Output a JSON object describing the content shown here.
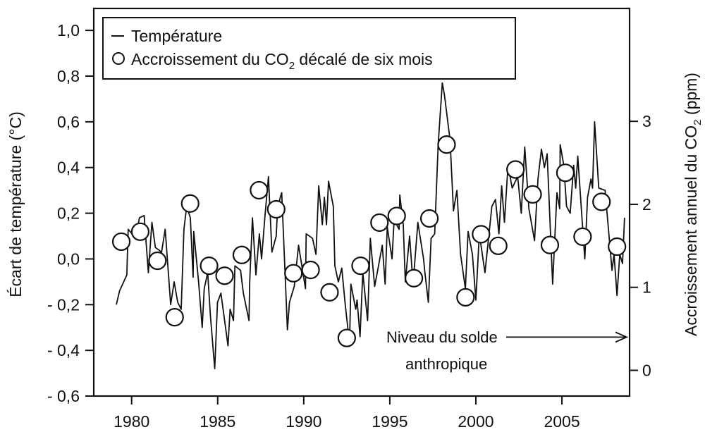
{
  "chart_data": {
    "type": "line",
    "title": "",
    "xlabel": "",
    "ylabel_left": "Écart de température (°C)",
    "ylabel_right": {
      "text": "Accroissement annuel du CO",
      "sub": "2",
      "suffix": " (ppm)"
    },
    "xlim": [
      1977.8,
      2008.93
    ],
    "ylim_left": [
      -0.6,
      1.096
    ],
    "ylim_right": [
      -0.31,
      4.36
    ],
    "grid": false,
    "legend_position": "top-left",
    "x_ticks": [
      1980,
      1985,
      1990,
      1995,
      2000,
      2005
    ],
    "x_tick_labels": [
      "1980",
      "1985",
      "1990",
      "1995",
      "2000",
      "2005"
    ],
    "y_left_ticks": [
      1.0,
      0.8,
      0.6,
      0.4,
      0.2,
      0.0,
      -0.2,
      -0.4,
      -0.6
    ],
    "y_left_tick_labels": [
      "1,0",
      "0,8",
      "0,6",
      "0,4",
      "0,2",
      "0,0",
      "- 0,2",
      "- 0,4",
      "- 0,6"
    ],
    "y_right_ticks": [
      3,
      2,
      1,
      0
    ],
    "y_right_tick_labels": [
      "3",
      "2",
      "1",
      "0"
    ],
    "legend": {
      "temperature": "Température",
      "co2": {
        "text": "Accroissement du CO",
        "sub": "2",
        "suffix": " décalé de six mois"
      }
    },
    "annotation": {
      "line1": "Niveau du solde",
      "line2": "anthropique",
      "level_ppm": 0.4
    },
    "series": [
      {
        "name": "Température",
        "axis": "left",
        "style": "line",
        "x": [
          1979.11,
          1979.3,
          1979.72,
          1979.8,
          1980.24,
          1980.45,
          1980.73,
          1980.97,
          1981.18,
          1981.38,
          1981.74,
          1981.95,
          1982.27,
          1982.47,
          1982.68,
          1982.88,
          1983.04,
          1983.2,
          1983.41,
          1983.57,
          1983.61,
          1983.89,
          1984.1,
          1984.22,
          1984.42,
          1984.58,
          1984.83,
          1984.99,
          1985.19,
          1985.6,
          1985.72,
          1985.92,
          1986.0,
          1986.33,
          1986.49,
          1986.82,
          1986.86,
          1987.02,
          1987.22,
          1987.42,
          1987.55,
          1987.75,
          1987.95,
          1988.15,
          1988.4,
          1988.48,
          1988.64,
          1988.72,
          1989.05,
          1989.17,
          1989.45,
          1989.7,
          1990.1,
          1990.14,
          1990.51,
          1990.71,
          1990.87,
          1991.08,
          1991.2,
          1991.32,
          1991.44,
          1991.72,
          1991.81,
          1992.01,
          1992.21,
          1992.41,
          1992.66,
          1992.74,
          1993.02,
          1993.1,
          1993.27,
          1993.43,
          1993.71,
          1993.87,
          1994.12,
          1994.32,
          1994.56,
          1994.73,
          1994.85,
          1995.13,
          1995.25,
          1995.54,
          1995.58,
          1995.78,
          1995.9,
          1996.15,
          1996.35,
          1996.63,
          1996.96,
          1997.04,
          1997.24,
          1997.4,
          1997.61,
          1997.81,
          1998.05,
          1998.17,
          1998.5,
          1998.7,
          1998.9,
          1999.11,
          1999.39,
          1999.55,
          1999.8,
          2000.0,
          2000.2,
          2000.53,
          2000.93,
          2001.14,
          2001.34,
          2001.5,
          2001.66,
          2001.87,
          2002.11,
          2002.43,
          2002.64,
          2002.84,
          2003.08,
          2003.41,
          2003.61,
          2003.81,
          2003.98,
          2004.14,
          2004.46,
          2004.71,
          2004.87,
          2004.9,
          2005.11,
          2005.27,
          2005.48,
          2005.68,
          2005.8,
          2005.92,
          2006.21,
          2006.33,
          2006.49,
          2006.69,
          2006.78,
          2006.9,
          2007.14,
          2007.51,
          2007.91,
          2008.03,
          2008.2,
          2008.36,
          2008.52,
          2008.64
        ],
        "y": [
          -0.2,
          -0.14,
          -0.07,
          0.13,
          0.09,
          0.18,
          0.19,
          -0.06,
          0.16,
          0.05,
          0.03,
          0.13,
          -0.2,
          -0.1,
          -0.19,
          -0.22,
          0.13,
          0.23,
          0.18,
          -0.08,
          0.12,
          -0.1,
          -0.3,
          -0.13,
          -0.06,
          -0.25,
          -0.48,
          -0.19,
          -0.15,
          -0.38,
          -0.22,
          -0.27,
          -0.03,
          -0.05,
          -0.15,
          -0.27,
          -0.1,
          0.18,
          -0.07,
          0.11,
          0.0,
          0.19,
          0.36,
          0.03,
          0.1,
          0.22,
          0.27,
          0.29,
          -0.31,
          -0.19,
          -0.12,
          0.06,
          -0.13,
          0.11,
          0.09,
          0.02,
          0.32,
          0.15,
          0.27,
          0.15,
          0.34,
          0.23,
          -0.03,
          -0.1,
          -0.04,
          -0.2,
          -0.37,
          -0.11,
          -0.22,
          -0.18,
          -0.34,
          -0.06,
          -0.27,
          0.09,
          -0.12,
          -0.04,
          0.06,
          -0.11,
          0.14,
          0.0,
          0.17,
          0.13,
          0.28,
          0.15,
          -0.1,
          0.1,
          -0.11,
          0.16,
          0.0,
          -0.06,
          -0.19,
          0.09,
          0.11,
          0.5,
          0.77,
          0.72,
          0.52,
          0.21,
          0.3,
          0.02,
          -0.13,
          0.12,
          0.02,
          -0.18,
          0.11,
          -0.06,
          0.23,
          0.26,
          0.11,
          0.32,
          0.16,
          0.41,
          0.31,
          0.36,
          0.2,
          0.49,
          0.22,
          0.08,
          0.35,
          0.48,
          0.4,
          0.46,
          -0.11,
          0.29,
          0.22,
          0.5,
          0.41,
          0.23,
          0.2,
          0.41,
          0.31,
          0.45,
          0.13,
          0.0,
          0.27,
          0.35,
          0.31,
          0.6,
          0.31,
          0.3,
          -0.05,
          0.02,
          -0.16,
          0.02,
          -0.02,
          0.18
        ]
      },
      {
        "name": "Accroissement du CO2 décalé de six mois",
        "axis": "right",
        "style": "markers",
        "x": [
          1979.4,
          1980.5,
          1981.5,
          1982.5,
          1983.4,
          1984.5,
          1985.4,
          1986.4,
          1987.4,
          1988.4,
          1989.4,
          1990.4,
          1991.5,
          1992.5,
          1993.3,
          1994.4,
          1995.4,
          1996.4,
          1997.3,
          1998.3,
          1999.4,
          2000.3,
          2001.3,
          2002.3,
          2003.3,
          2004.3,
          2005.2,
          2006.2,
          2007.3,
          2008.2
        ],
        "y": [
          1.55,
          1.67,
          1.32,
          0.64,
          2.01,
          1.26,
          1.14,
          1.39,
          2.17,
          1.94,
          1.17,
          1.21,
          0.94,
          0.39,
          1.26,
          1.78,
          1.86,
          1.11,
          1.83,
          2.72,
          0.88,
          1.64,
          1.5,
          2.42,
          2.12,
          1.51,
          2.38,
          1.61,
          2.03,
          1.49
        ]
      }
    ],
    "colors": {
      "line": "#111111",
      "marker_fill": "#ffffff",
      "marker_stroke": "#111111",
      "background": "#ffffff"
    }
  }
}
